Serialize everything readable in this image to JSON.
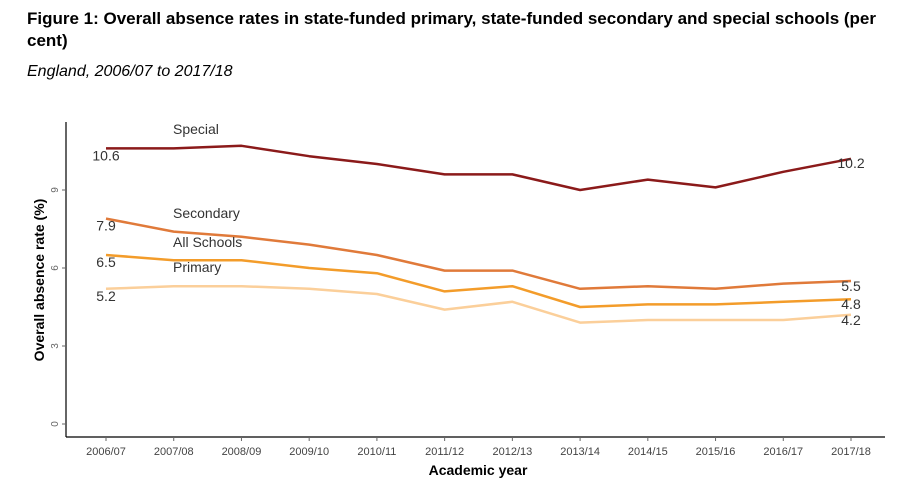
{
  "header": {
    "title": "Figure 1: Overall absence rates in state-funded primary, state-funded secondary and special schools (per cent)",
    "subtitle": "England, 2006/07 to 2017/18"
  },
  "chart_data": {
    "type": "line",
    "xlabel": "Academic year",
    "ylabel": "Overall absence rate (%)",
    "ylim": [
      0,
      12
    ],
    "yticks": [
      0,
      3,
      6,
      9
    ],
    "grid": false,
    "categories": [
      "2006/07",
      "2007/08",
      "2008/09",
      "2009/10",
      "2010/11",
      "2011/12",
      "2012/13",
      "2013/14",
      "2014/15",
      "2015/16",
      "2016/17",
      "2017/18"
    ],
    "series": [
      {
        "name": "Special",
        "color": "#8b1a1a",
        "start_label": "10.6",
        "end_label": "10.2",
        "values": [
          10.6,
          10.6,
          10.7,
          10.3,
          10.0,
          9.6,
          9.6,
          9.0,
          9.4,
          9.1,
          9.7,
          10.2
        ]
      },
      {
        "name": "Secondary",
        "color": "#e07a3a",
        "start_label": "7.9",
        "end_label": "5.5",
        "values": [
          7.9,
          7.4,
          7.2,
          6.9,
          6.5,
          5.9,
          5.9,
          5.2,
          5.3,
          5.2,
          5.4,
          5.5
        ]
      },
      {
        "name": "All Schools",
        "color": "#f39c2a",
        "start_label": "6.5",
        "end_label": "4.8",
        "values": [
          6.5,
          6.3,
          6.3,
          6.0,
          5.8,
          5.1,
          5.3,
          4.5,
          4.6,
          4.6,
          4.7,
          4.8
        ]
      },
      {
        "name": "Primary",
        "color": "#fbcf9a",
        "start_label": "5.2",
        "end_label": "4.2",
        "values": [
          5.2,
          5.3,
          5.3,
          5.2,
          5.0,
          4.4,
          4.7,
          3.9,
          4.0,
          4.0,
          4.0,
          4.2
        ]
      }
    ]
  }
}
